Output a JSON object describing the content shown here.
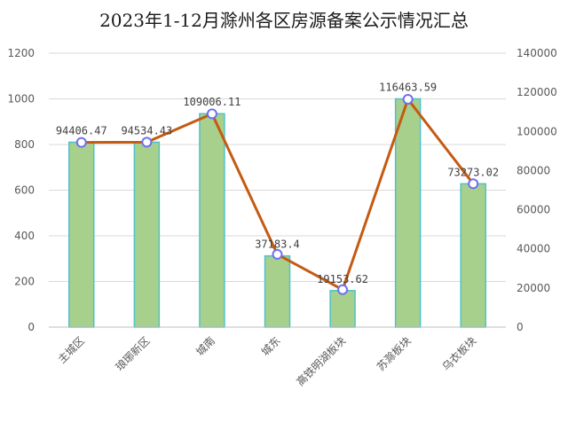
{
  "chart_data": {
    "type": "bar",
    "title": "2023年1-12月滁州各区房源备案公示情况汇总",
    "categories": [
      "主城区",
      "琅琊新区",
      "城南",
      "城东",
      "高铁明湖板块",
      "苏滁板块",
      "乌衣板块"
    ],
    "series": [
      {
        "type": "bar",
        "axis": "left",
        "values": [
          810,
          810,
          935,
          312,
          160,
          1000,
          628
        ],
        "color": "#a8d08d",
        "edge_color": "#4fc1c8"
      },
      {
        "type": "line",
        "axis": "right",
        "values": [
          94406.47,
          94534.43,
          109006.11,
          37183.4,
          19153.62,
          116463.59,
          73273.02
        ],
        "labels": [
          "94406.47",
          "94534.43",
          "109006.11",
          "37183.4",
          "19153.62",
          "116463.59",
          "73273.02"
        ],
        "color": "#c55a11",
        "marker_color": "#6f6ff0"
      }
    ],
    "y_left": {
      "min": 0,
      "max": 1200,
      "ticks": [
        0,
        200,
        400,
        600,
        800,
        1000,
        1200
      ]
    },
    "y_right": {
      "min": 0,
      "max": 140000,
      "ticks": [
        0,
        20000,
        40000,
        60000,
        80000,
        100000,
        120000,
        140000
      ]
    },
    "grid": true,
    "legend": "none"
  }
}
